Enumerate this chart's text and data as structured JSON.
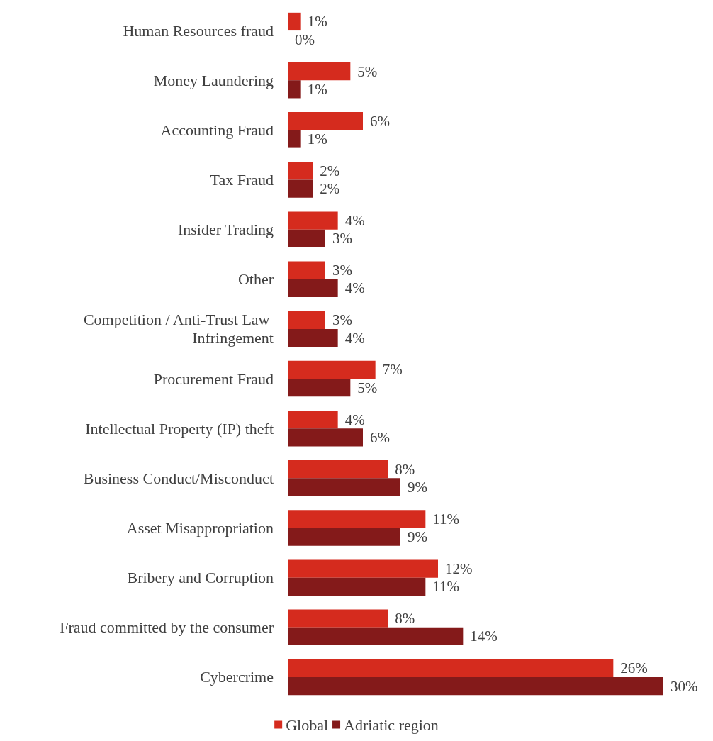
{
  "chart_data": {
    "type": "bar",
    "orientation": "horizontal",
    "legend": "bottom",
    "categories": [
      "Human Resources fraud",
      "Money Laundering",
      "Accounting Fraud",
      "Tax Fraud",
      "Insider Trading",
      "Other",
      "Competition / Anti-Trust Law Infringement",
      "Procurement Fraud",
      "Intellectual Property (IP) theft",
      "Business Conduct/Misconduct",
      "Asset Misappropriation",
      "Bribery and Corruption",
      "Fraud committed by the consumer",
      "Cybercrime"
    ],
    "series": [
      {
        "name": "Global",
        "color": "#d52b1e",
        "values": [
          1,
          5,
          6,
          2,
          4,
          3,
          3,
          7,
          4,
          8,
          11,
          12,
          8,
          26
        ],
        "value_labels": [
          "1%",
          "5%",
          "6%",
          "2%",
          "4%",
          "3%",
          "3%",
          "7%",
          "4%",
          "8%",
          "11%",
          "12%",
          "8%",
          "26%"
        ]
      },
      {
        "name": "Adriatic region",
        "color": "#841a1a",
        "values": [
          0,
          1,
          1,
          2,
          3,
          4,
          4,
          5,
          6,
          9,
          9,
          11,
          14,
          30
        ],
        "value_labels": [
          "0%",
          "1%",
          "1%",
          "2%",
          "3%",
          "4%",
          "4%",
          "5%",
          "6%",
          "9%",
          "9%",
          "11%",
          "14%",
          "30%"
        ]
      }
    ]
  }
}
